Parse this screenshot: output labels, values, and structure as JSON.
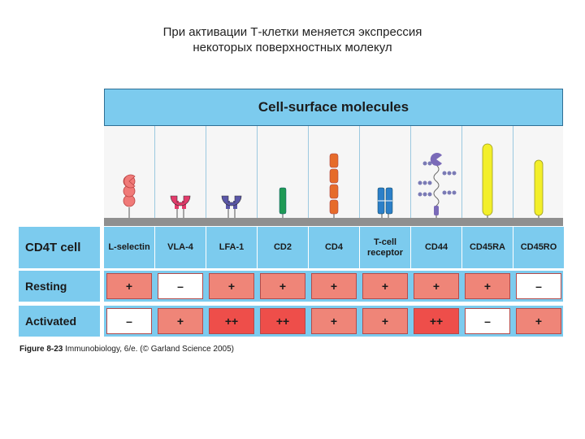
{
  "title": {
    "line1": "При активации Т-клетки меняется экспрессия",
    "line2": "некоторых поверхностных молекул"
  },
  "table": {
    "header": "Cell-surface molecules",
    "row_header_label": "CD4T cell",
    "molecules": [
      {
        "name": "L-selectin",
        "icon": "l-selectin-molecule-icon",
        "color": "#f07a78",
        "resting": "+",
        "activated": "–"
      },
      {
        "name": "VLA-4",
        "icon": "vla4-molecule-icon",
        "color": "#e23b6a",
        "resting": "–",
        "activated": "+"
      },
      {
        "name": "LFA-1",
        "icon": "lfa1-molecule-icon",
        "color": "#5a56a8",
        "resting": "+",
        "activated": "++"
      },
      {
        "name": "CD2",
        "icon": "cd2-molecule-icon",
        "color": "#1f9a55",
        "resting": "+",
        "activated": "++"
      },
      {
        "name": "CD4",
        "icon": "cd4-molecule-icon",
        "color": "#e66b2a",
        "resting": "+",
        "activated": "+"
      },
      {
        "name": "T-cell\nreceptor",
        "icon": "tcr-molecule-icon",
        "color": "#2c7fc8",
        "resting": "+",
        "activated": "+"
      },
      {
        "name": "CD44",
        "icon": "cd44-molecule-icon",
        "color": "#7a6ab8",
        "resting": "+",
        "activated": "++"
      },
      {
        "name": "CD45RA",
        "icon": "cd45ra-molecule-icon",
        "color": "#f3ef2a",
        "resting": "+",
        "activated": "–"
      },
      {
        "name": "CD45RO",
        "icon": "cd45ro-molecule-icon",
        "color": "#f3ef2a",
        "resting": "–",
        "activated": "+"
      }
    ],
    "rows": {
      "resting": "Resting",
      "activated": "Activated"
    }
  },
  "caption": {
    "figure": "Figure 8-23",
    "text": " Immunobiology, 6/e. (© Garland Science 2005)"
  },
  "colors": {
    "header_blue": "#7ccbee",
    "plus": "#ef8578",
    "plusplus": "#ee4e4a",
    "minus": "#ffffff",
    "membrane": "#8f8f8f"
  }
}
